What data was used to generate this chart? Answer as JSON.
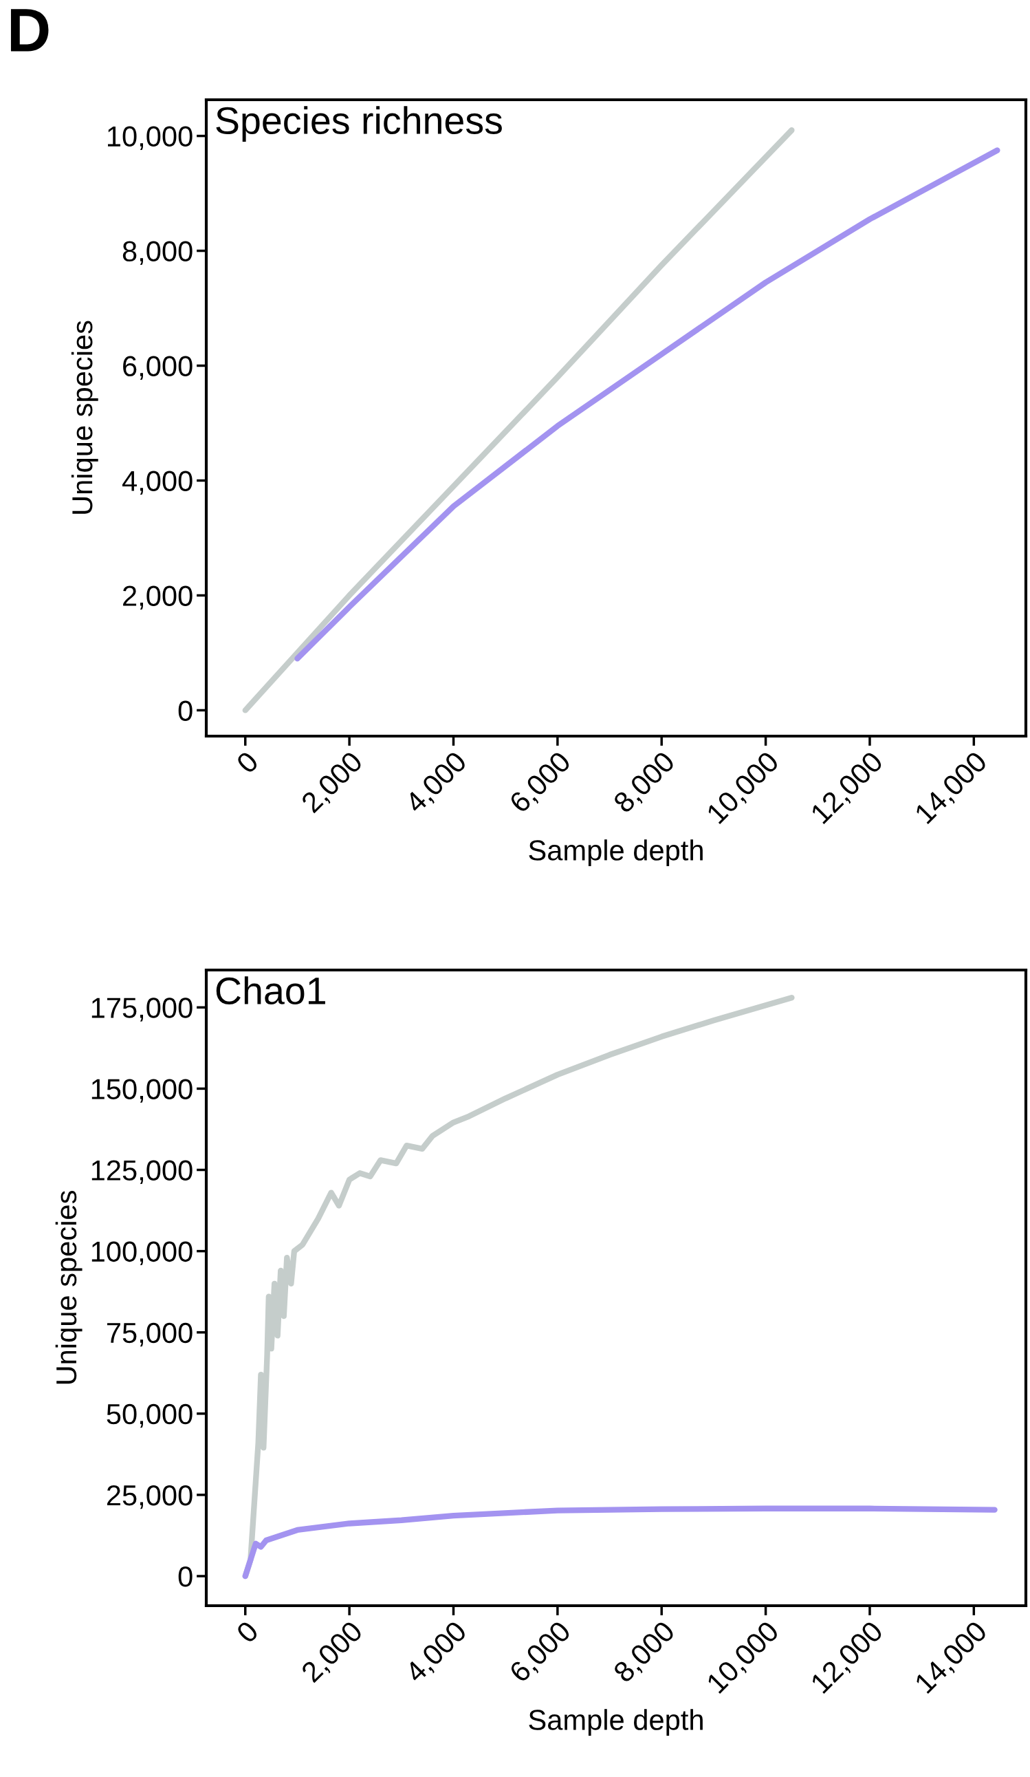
{
  "chart_data": [
    {
      "type": "line",
      "title": "Species richness",
      "xlabel": "Sample depth",
      "ylabel": "Unique species",
      "annotations": [
        "D"
      ],
      "xlim": [
        -750,
        15000
      ],
      "ylim": [
        -450,
        10630
      ],
      "xticks": [
        {
          "value": 0,
          "label": "0"
        },
        {
          "value": 2000,
          "label": "2,000"
        },
        {
          "value": 4000,
          "label": "4,000"
        },
        {
          "value": 6000,
          "label": "6,000"
        },
        {
          "value": 8000,
          "label": "8,000"
        },
        {
          "value": 10000,
          "label": "10,000"
        },
        {
          "value": 12000,
          "label": "12,000"
        },
        {
          "value": 14000,
          "label": "14,000"
        }
      ],
      "yticks": [
        {
          "value": 0,
          "label": "0"
        },
        {
          "value": 2000,
          "label": "2,000"
        },
        {
          "value": 4000,
          "label": "4,000"
        },
        {
          "value": 6000,
          "label": "6,000"
        },
        {
          "value": 8000,
          "label": "8,000"
        },
        {
          "value": 10000,
          "label": "10,000"
        }
      ],
      "grid": false,
      "legend": false,
      "marker": "none",
      "line_style": "solid",
      "series": [
        {
          "color": "#c5cdcb",
          "x": [
            0,
            2000,
            4000,
            6000,
            8000,
            10500
          ],
          "values": [
            0,
            2000,
            3900,
            5800,
            7750,
            10100
          ]
        },
        {
          "color": "#a393f0",
          "x": [
            1000,
            2000,
            4000,
            6000,
            8000,
            10000,
            12000,
            14450
          ],
          "values": [
            900,
            1800,
            3550,
            4950,
            6200,
            7450,
            8550,
            9750
          ]
        }
      ]
    },
    {
      "type": "line",
      "title": "Chao1",
      "xlabel": "Sample depth",
      "ylabel": "Unique species",
      "xlim": [
        -750,
        15000
      ],
      "ylim": [
        -9100,
        186500
      ],
      "xticks": [
        {
          "value": 0,
          "label": "0"
        },
        {
          "value": 2000,
          "label": "2,000"
        },
        {
          "value": 4000,
          "label": "4,000"
        },
        {
          "value": 6000,
          "label": "6,000"
        },
        {
          "value": 8000,
          "label": "8,000"
        },
        {
          "value": 10000,
          "label": "10,000"
        },
        {
          "value": 12000,
          "label": "12,000"
        },
        {
          "value": 14000,
          "label": "14,000"
        }
      ],
      "yticks": [
        {
          "value": 0,
          "label": "0"
        },
        {
          "value": 25000,
          "label": "25,000"
        },
        {
          "value": 50000,
          "label": "50,000"
        },
        {
          "value": 75000,
          "label": "75,000"
        },
        {
          "value": 100000,
          "label": "100,000"
        },
        {
          "value": 125000,
          "label": "125,000"
        },
        {
          "value": 150000,
          "label": "150,000"
        },
        {
          "value": 175000,
          "label": "175,000"
        }
      ],
      "grid": false,
      "legend": false,
      "marker": "none",
      "line_style": "solid",
      "series": [
        {
          "color": "#c5cdcb",
          "x": [
            0,
            100,
            150,
            250,
            300,
            350,
            420,
            450,
            500,
            560,
            620,
            680,
            740,
            800,
            880,
            940,
            1100,
            1400,
            1650,
            1800,
            2000,
            2200,
            2400,
            2600,
            2900,
            3100,
            3400,
            3600,
            4000,
            4300,
            5000,
            6000,
            7000,
            8000,
            9000,
            10500
          ],
          "values": [
            0,
            5000,
            17000,
            41000,
            62000,
            39500,
            68000,
            86000,
            70000,
            90000,
            74000,
            94000,
            80000,
            98000,
            90000,
            100000,
            102000,
            110000,
            118000,
            114000,
            122000,
            124000,
            123000,
            128000,
            127000,
            132500,
            131500,
            135500,
            139600,
            141500,
            147000,
            154300,
            160400,
            166000,
            171000,
            178000
          ]
        },
        {
          "color": "#a393f0",
          "x": [
            0,
            100,
            200,
            300,
            400,
            1000,
            2000,
            3000,
            4000,
            6000,
            8000,
            10000,
            12000,
            14400
          ],
          "values": [
            0,
            5000,
            10000,
            9000,
            11000,
            14200,
            16200,
            17200,
            18600,
            20200,
            20600,
            20800,
            20800,
            20400
          ]
        }
      ]
    }
  ]
}
